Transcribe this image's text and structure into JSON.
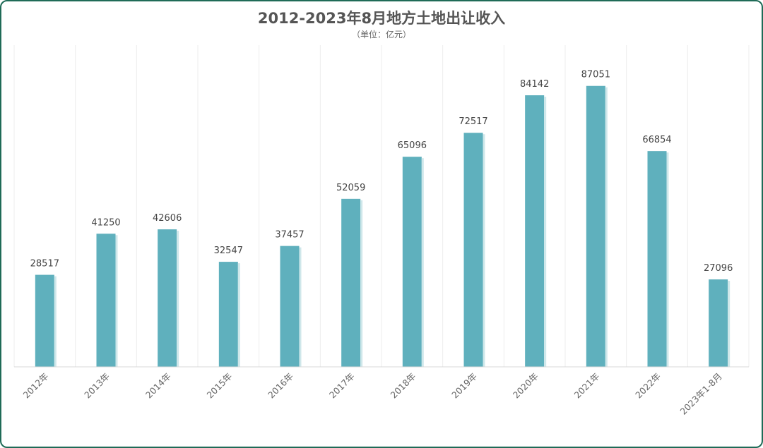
{
  "chart_data": {
    "type": "bar",
    "title": "2012-2023年8月地方土地出让收入",
    "subtitle": "（单位：亿元）",
    "categories": [
      "2012年",
      "2013年",
      "2014年",
      "2015年",
      "2016年",
      "2017年",
      "2018年",
      "2019年",
      "2020年",
      "2021年",
      "2022年",
      "2023年1-8月"
    ],
    "values": [
      28517,
      41250,
      42606,
      32547,
      37457,
      52059,
      65096,
      72517,
      84142,
      87051,
      66854,
      27096
    ],
    "xlabel": "",
    "ylabel": "",
    "ylim": [
      0,
      100000
    ],
    "grid": "vertical",
    "legend": "none",
    "bar_color": "#5fb0bd"
  }
}
